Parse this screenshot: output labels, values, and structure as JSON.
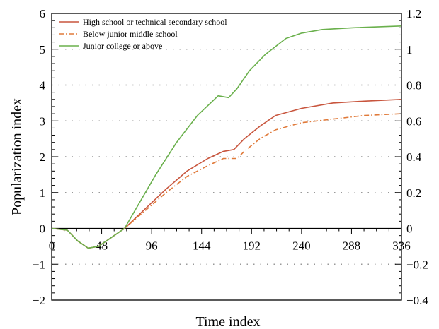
{
  "chart_data": {
    "type": "line",
    "title": "",
    "xlabel": "Time index",
    "ylabel": "Popularization index",
    "xlim": [
      0,
      336
    ],
    "ylim": [
      -2,
      6
    ],
    "y2lim": [
      -0.4,
      1.2
    ],
    "xticks": [
      "0",
      "48",
      "96",
      "144",
      "192",
      "240",
      "288",
      "336"
    ],
    "yticks": [
      "−2",
      "−1",
      "0",
      "1",
      "2",
      "3",
      "4",
      "5",
      "6"
    ],
    "y2ticks": [
      "−0.4",
      "−0.2",
      "0",
      "0.2",
      "0.4",
      "0.6",
      "0.8",
      "1",
      "1.2"
    ],
    "grid": "dotted horizontal",
    "legend_position": "top-left",
    "series": [
      {
        "name": "High school or technical secondary school",
        "color": "#c8553d",
        "dash": "solid",
        "x": [
          0,
          15,
          25,
          35,
          45,
          55,
          70,
          90,
          110,
          130,
          150,
          165,
          175,
          185,
          200,
          215,
          240,
          270,
          300,
          336
        ],
        "y": [
          0,
          -0.05,
          -0.35,
          -0.55,
          -0.5,
          -0.3,
          0.0,
          0.55,
          1.1,
          1.6,
          1.95,
          2.15,
          2.2,
          2.5,
          2.85,
          3.15,
          3.35,
          3.5,
          3.55,
          3.6
        ]
      },
      {
        "name": "Below junior middle school",
        "color": "#e07a3a",
        "dash": "dashdot",
        "x": [
          0,
          15,
          25,
          35,
          45,
          55,
          70,
          90,
          110,
          130,
          150,
          165,
          178,
          185,
          200,
          215,
          240,
          270,
          300,
          336
        ],
        "y": [
          0,
          -0.05,
          -0.35,
          -0.55,
          -0.5,
          -0.3,
          0.0,
          0.5,
          1.0,
          1.45,
          1.75,
          1.95,
          1.95,
          2.15,
          2.5,
          2.75,
          2.95,
          3.05,
          3.15,
          3.2
        ]
      },
      {
        "name": "Junior college or above",
        "color": "#6ab04c",
        "dash": "solid",
        "x": [
          0,
          15,
          25,
          35,
          45,
          55,
          70,
          85,
          100,
          120,
          140,
          160,
          170,
          178,
          190,
          205,
          225,
          240,
          260,
          290,
          336
        ],
        "y": [
          0,
          -0.05,
          -0.35,
          -0.55,
          -0.5,
          -0.3,
          0.0,
          0.75,
          1.5,
          2.4,
          3.15,
          3.7,
          3.65,
          3.9,
          4.4,
          4.85,
          5.3,
          5.45,
          5.55,
          5.6,
          5.65
        ]
      }
    ]
  }
}
